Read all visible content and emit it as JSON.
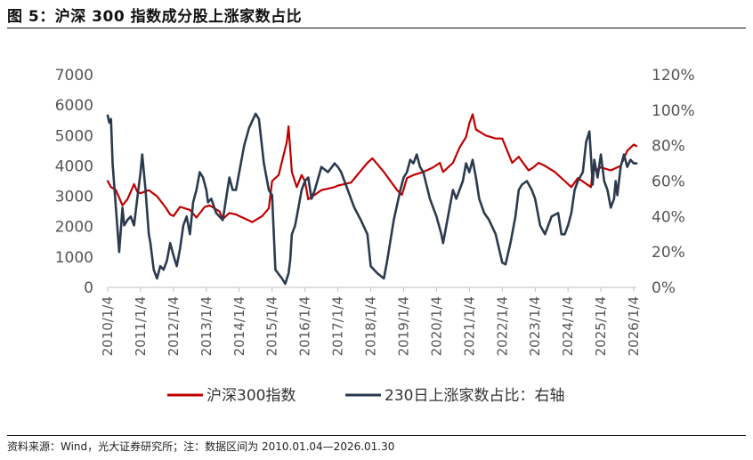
{
  "header": {
    "title": "图 5：沪深 300 指数成分股上涨家数占比"
  },
  "footer": {
    "source": "资料来源：Wind，光大证券研究所；注：数据区间为 2010.01.04—2026.01.30"
  },
  "colors": {
    "series_index": "#c00000",
    "series_ratio": "#2b3a4e",
    "axis": "#bfbfbf",
    "text": "#555555"
  },
  "chart_data": {
    "type": "line",
    "title": "沪深 300 指数成分股上涨家数占比",
    "x_tick_labels": [
      "2010/1/4",
      "2011/1/4",
      "2012/1/4",
      "2013/1/4",
      "2014/1/4",
      "2015/1/4",
      "2016/1/4",
      "2017/1/4",
      "2018/1/4",
      "2019/1/4",
      "2020/1/4",
      "2021/1/4",
      "2022/1/4",
      "2023/1/4",
      "2024/1/4",
      "2025/1/4",
      "2026/1/4"
    ],
    "xlim": [
      2010.0,
      2026.08
    ],
    "y_left": {
      "min": 0,
      "max": 7000,
      "ticks": [
        0,
        1000,
        2000,
        3000,
        4000,
        5000,
        6000,
        7000
      ],
      "tick_labels": [
        "0",
        "1000",
        "2000",
        "3000",
        "4000",
        "5000",
        "6000",
        "7000"
      ]
    },
    "y_right": {
      "min": 0,
      "max": 1.2,
      "ticks": [
        0,
        0.2,
        0.4,
        0.6,
        0.8,
        1.0,
        1.2
      ],
      "tick_labels": [
        "0%",
        "20%",
        "40%",
        "60%",
        "80%",
        "100%",
        "120%"
      ]
    },
    "legend": [
      "沪深300指数",
      "230日上涨家数占比：右轴"
    ],
    "legend_position": "bottom",
    "series": [
      {
        "name": "沪深300指数",
        "axis": "left",
        "x": [
          2010.0,
          2010.1,
          2010.25,
          2010.45,
          2010.6,
          2010.8,
          2010.9,
          2011.0,
          2011.25,
          2011.5,
          2011.75,
          2011.9,
          2012.0,
          2012.2,
          2012.5,
          2012.7,
          2012.95,
          2013.1,
          2013.4,
          2013.5,
          2013.7,
          2013.9,
          2014.1,
          2014.4,
          2014.7,
          2014.9,
          2015.0,
          2015.2,
          2015.45,
          2015.5,
          2015.6,
          2015.75,
          2015.9,
          2016.0,
          2016.1,
          2016.5,
          2016.9,
          2017.0,
          2017.4,
          2017.9,
          2018.05,
          2018.4,
          2018.6,
          2018.8,
          2018.95,
          2019.1,
          2019.3,
          2019.6,
          2019.9,
          2020.1,
          2020.2,
          2020.5,
          2020.7,
          2020.9,
          2021.0,
          2021.1,
          2021.2,
          2021.5,
          2021.8,
          2022.0,
          2022.3,
          2022.5,
          2022.8,
          2022.95,
          2023.1,
          2023.3,
          2023.6,
          2023.9,
          2024.1,
          2024.3,
          2024.5,
          2024.7,
          2024.75,
          2024.85,
          2025.0,
          2025.3,
          2025.6,
          2025.8,
          2026.0,
          2026.08
        ],
        "values": [
          3500,
          3300,
          3200,
          2700,
          2900,
          3400,
          3150,
          3100,
          3200,
          3000,
          2650,
          2400,
          2350,
          2650,
          2550,
          2300,
          2650,
          2700,
          2500,
          2250,
          2450,
          2400,
          2300,
          2150,
          2350,
          2600,
          3500,
          3700,
          4800,
          5300,
          3800,
          3300,
          3700,
          3500,
          2900,
          3200,
          3300,
          3350,
          3450,
          4100,
          4250,
          3800,
          3500,
          3200,
          3050,
          3600,
          3700,
          3800,
          3950,
          4100,
          3800,
          4100,
          4600,
          4950,
          5400,
          5700,
          5200,
          5000,
          4900,
          4900,
          4100,
          4300,
          3850,
          3950,
          4100,
          4000,
          3800,
          3500,
          3300,
          3600,
          3450,
          3300,
          3900,
          3850,
          3950,
          3850,
          4000,
          4500,
          4700,
          4650
        ]
      },
      {
        "name": "230日上涨家数占比：右轴",
        "axis": "right",
        "x": [
          2010.0,
          2010.05,
          2010.1,
          2010.15,
          2010.25,
          2010.35,
          2010.45,
          2010.5,
          2010.6,
          2010.7,
          2010.8,
          2010.9,
          2011.0,
          2011.05,
          2011.15,
          2011.25,
          2011.3,
          2011.4,
          2011.5,
          2011.6,
          2011.7,
          2011.8,
          2011.9,
          2012.0,
          2012.1,
          2012.2,
          2012.3,
          2012.4,
          2012.5,
          2012.6,
          2012.7,
          2012.8,
          2012.9,
          2013.0,
          2013.05,
          2013.15,
          2013.3,
          2013.5,
          2013.6,
          2013.7,
          2013.8,
          2013.9,
          2014.0,
          2014.15,
          2014.3,
          2014.5,
          2014.6,
          2014.75,
          2014.9,
          2015.0,
          2015.1,
          2015.3,
          2015.4,
          2015.5,
          2015.55,
          2015.6,
          2015.7,
          2015.8,
          2015.9,
          2016.0,
          2016.1,
          2016.2,
          2016.3,
          2016.5,
          2016.7,
          2016.9,
          2017.0,
          2017.1,
          2017.3,
          2017.5,
          2017.7,
          2017.9,
          2018.0,
          2018.2,
          2018.4,
          2018.5,
          2018.7,
          2018.9,
          2019.0,
          2019.1,
          2019.2,
          2019.3,
          2019.4,
          2019.5,
          2019.6,
          2019.8,
          2019.9,
          2020.0,
          2020.15,
          2020.2,
          2020.3,
          2020.5,
          2020.6,
          2020.8,
          2020.9,
          2021.0,
          2021.1,
          2021.2,
          2021.3,
          2021.45,
          2021.6,
          2021.8,
          2021.9,
          2022.0,
          2022.1,
          2022.25,
          2022.4,
          2022.5,
          2022.6,
          2022.75,
          2022.9,
          2023.0,
          2023.05,
          2023.15,
          2023.3,
          2023.5,
          2023.7,
          2023.8,
          2023.9,
          2024.0,
          2024.1,
          2024.2,
          2024.3,
          2024.45,
          2024.55,
          2024.65,
          2024.75,
          2024.8,
          2024.9,
          2025.0,
          2025.1,
          2025.2,
          2025.3,
          2025.4,
          2025.45,
          2025.5,
          2025.6,
          2025.7,
          2025.8,
          2025.9,
          2026.0,
          2026.08
        ],
        "values": [
          0.97,
          0.93,
          0.95,
          0.7,
          0.45,
          0.2,
          0.45,
          0.35,
          0.38,
          0.4,
          0.35,
          0.5,
          0.65,
          0.75,
          0.55,
          0.3,
          0.25,
          0.1,
          0.05,
          0.12,
          0.1,
          0.15,
          0.25,
          0.18,
          0.12,
          0.22,
          0.35,
          0.4,
          0.3,
          0.48,
          0.55,
          0.65,
          0.62,
          0.55,
          0.48,
          0.5,
          0.42,
          0.38,
          0.5,
          0.62,
          0.55,
          0.55,
          0.65,
          0.8,
          0.9,
          0.98,
          0.95,
          0.7,
          0.55,
          0.52,
          0.1,
          0.05,
          0.02,
          0.08,
          0.15,
          0.3,
          0.35,
          0.45,
          0.55,
          0.6,
          0.62,
          0.5,
          0.55,
          0.68,
          0.65,
          0.7,
          0.68,
          0.65,
          0.55,
          0.45,
          0.38,
          0.3,
          0.12,
          0.08,
          0.05,
          0.15,
          0.38,
          0.55,
          0.62,
          0.65,
          0.72,
          0.7,
          0.75,
          0.68,
          0.65,
          0.5,
          0.45,
          0.4,
          0.3,
          0.25,
          0.35,
          0.55,
          0.5,
          0.6,
          0.7,
          0.65,
          0.72,
          0.62,
          0.5,
          0.42,
          0.38,
          0.3,
          0.22,
          0.14,
          0.13,
          0.25,
          0.4,
          0.55,
          0.58,
          0.6,
          0.55,
          0.5,
          0.45,
          0.35,
          0.3,
          0.4,
          0.42,
          0.3,
          0.3,
          0.35,
          0.42,
          0.55,
          0.6,
          0.65,
          0.82,
          0.88,
          0.58,
          0.72,
          0.62,
          0.75,
          0.6,
          0.55,
          0.45,
          0.5,
          0.6,
          0.52,
          0.68,
          0.75,
          0.68,
          0.72,
          0.7,
          0.7
        ]
      }
    ]
  }
}
